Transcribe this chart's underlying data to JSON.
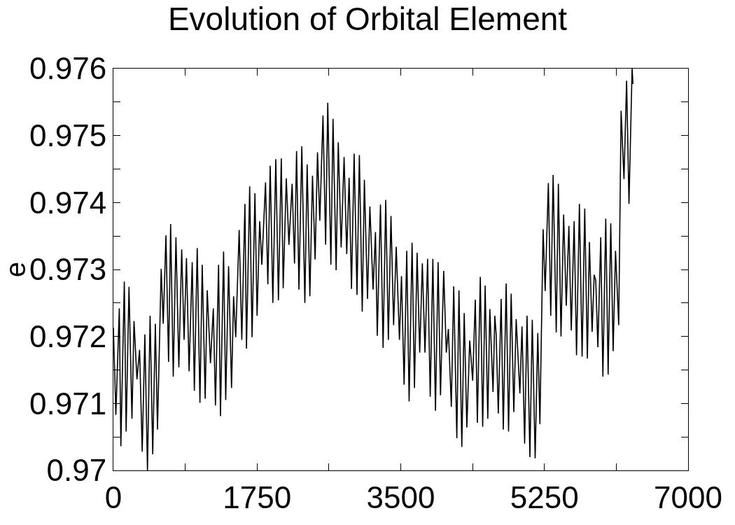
{
  "chart_data": {
    "type": "line",
    "title": "Evolution of Orbital Element",
    "ylabel": "e",
    "xlim": [
      0,
      7000
    ],
    "xticks": [
      0,
      {
        "value": 875,
        "label": null
      },
      1750,
      {
        "value": 2625,
        "label": null
      },
      3500,
      {
        "value": 4375,
        "label": null
      },
      5250,
      {
        "value": 6125,
        "label": null
      },
      7000
    ],
    "ylim": [
      0.97,
      0.976
    ],
    "yticks": [
      0.97,
      {
        "value": 0.9705,
        "label": null
      },
      0.971,
      {
        "value": 0.9715,
        "label": null
      },
      0.972,
      {
        "value": 0.9725,
        "label": null
      },
      0.973,
      {
        "value": 0.9735,
        "label": null
      },
      0.974,
      {
        "value": 0.9745,
        "label": null
      },
      0.975,
      {
        "value": 0.9755,
        "label": null
      },
      0.976
    ],
    "marker": "none",
    "line_style": "solid",
    "x": [
      0,
      30,
      72,
      91,
      133,
      155,
      190,
      226,
      251,
      287,
      319,
      351,
      383,
      415,
      447,
      479,
      511,
      537,
      582,
      607,
      640,
      672,
      697,
      729,
      762,
      797,
      832,
      861,
      890,
      922,
      960,
      986,
      1021,
      1054,
      1082,
      1118,
      1143,
      1182,
      1217,
      1243,
      1281,
      1304,
      1342,
      1368,
      1403,
      1439,
      1464,
      1490,
      1532,
      1564,
      1602,
      1621,
      1660,
      1689,
      1724,
      1750,
      1782,
      1808,
      1853,
      1881,
      1910,
      1942,
      1978,
      2010,
      2045,
      2068,
      2106,
      2138,
      2177,
      2206,
      2231,
      2260,
      2295,
      2332,
      2360,
      2393,
      2425,
      2457,
      2486,
      2514,
      2553,
      2585,
      2611,
      2649,
      2675,
      2713,
      2739,
      2774,
      2810,
      2842,
      2871,
      2900,
      2932,
      2967,
      2996,
      3031,
      3057,
      3095,
      3124,
      3163,
      3192,
      3214,
      3253,
      3285,
      3317,
      3349,
      3381,
      3413,
      3445,
      3484,
      3509,
      3541,
      3573,
      3602,
      3638,
      3667,
      3699,
      3731,
      3763,
      3795,
      3827,
      3859,
      3891,
      3923,
      3955,
      3984,
      4023,
      4055,
      4080,
      4116,
      4145,
      4183,
      4209,
      4244,
      4273,
      4305,
      4340,
      4376,
      4408,
      4433,
      4469,
      4498,
      4528,
      4560,
      4585,
      4624,
      4646,
      4662,
      4688,
      4723,
      4749,
      4784,
      4813,
      4845,
      4877,
      4906,
      4951,
      4977,
      5009,
      5038,
      5073,
      5102,
      5137,
      5169,
      5195,
      5234,
      5259,
      5298,
      5327,
      5356,
      5394,
      5420,
      5452,
      5484,
      5516,
      5548,
      5577,
      5612,
      5641,
      5676,
      5709,
      5741,
      5773,
      5798,
      5831,
      5856,
      5875,
      5901,
      5936,
      5962,
      5997,
      6026,
      6058,
      6087,
      6116,
      6155,
      6184,
      6219,
      6251,
      6280,
      6318,
      6328
    ],
    "series": [
      {
        "color": "#000000",
        "values": [
          0.97213,
          0.97083,
          0.97242,
          0.97036,
          0.97282,
          0.97058,
          0.97274,
          0.97077,
          0.97223,
          0.97136,
          0.9718,
          0.97028,
          0.97203,
          0.97,
          0.97231,
          0.97024,
          0.97219,
          0.97061,
          0.97301,
          0.97219,
          0.97351,
          0.97162,
          0.97368,
          0.9714,
          0.97348,
          0.97154,
          0.9733,
          0.97195,
          0.97317,
          0.97148,
          0.97311,
          0.97119,
          0.97332,
          0.97101,
          0.97307,
          0.97107,
          0.97269,
          0.9716,
          0.97242,
          0.97097,
          0.97307,
          0.97081,
          0.97327,
          0.97105,
          0.97305,
          0.97123,
          0.9726,
          0.97199,
          0.97359,
          0.97195,
          0.97398,
          0.97182,
          0.97424,
          0.97199,
          0.97414,
          0.97231,
          0.97372,
          0.97307,
          0.9743,
          0.97278,
          0.97455,
          0.9725,
          0.97465,
          0.97254,
          0.97466,
          0.97272,
          0.97436,
          0.97337,
          0.97428,
          0.97309,
          0.97477,
          0.9727,
          0.97484,
          0.9725,
          0.97457,
          0.9726,
          0.9744,
          0.97315,
          0.97475,
          0.97373,
          0.9753,
          0.97337,
          0.97549,
          0.97307,
          0.97525,
          0.97299,
          0.9749,
          0.97333,
          0.97468,
          0.97323,
          0.97437,
          0.97271,
          0.97473,
          0.97262,
          0.97471,
          0.97237,
          0.97434,
          0.97256,
          0.97394,
          0.9727,
          0.97356,
          0.97201,
          0.97397,
          0.97183,
          0.97404,
          0.97195,
          0.9738,
          0.97217,
          0.97334,
          0.97195,
          0.9729,
          0.97128,
          0.97328,
          0.97103,
          0.9734,
          0.97123,
          0.97325,
          0.97176,
          0.97309,
          0.97176,
          0.97316,
          0.9711,
          0.97316,
          0.97089,
          0.97311,
          0.97112,
          0.97298,
          0.97176,
          0.97211,
          0.97095,
          0.97275,
          0.97048,
          0.97269,
          0.97035,
          0.97235,
          0.97064,
          0.97194,
          0.97134,
          0.97255,
          0.97071,
          0.97289,
          0.97065,
          0.97276,
          0.97077,
          0.97241,
          0.97117,
          0.97231,
          0.97203,
          0.97085,
          0.97256,
          0.97061,
          0.97279,
          0.97058,
          0.97264,
          0.97087,
          0.97226,
          0.97115,
          0.97215,
          0.9704,
          0.97231,
          0.9702,
          0.97225,
          0.97018,
          0.97205,
          0.97069,
          0.9736,
          0.97268,
          0.97429,
          0.97231,
          0.97441,
          0.97206,
          0.97428,
          0.972,
          0.97382,
          0.97246,
          0.97365,
          0.97209,
          0.97372,
          0.97172,
          0.97398,
          0.9717,
          0.97391,
          0.97167,
          0.97341,
          0.97207,
          0.97292,
          0.97284,
          0.97184,
          0.97348,
          0.9714,
          0.97376,
          0.97143,
          0.97369,
          0.97178,
          0.97328,
          0.97217,
          0.97537,
          0.97435,
          0.97582,
          0.97398,
          0.976,
          0.97577
        ]
      }
    ]
  }
}
